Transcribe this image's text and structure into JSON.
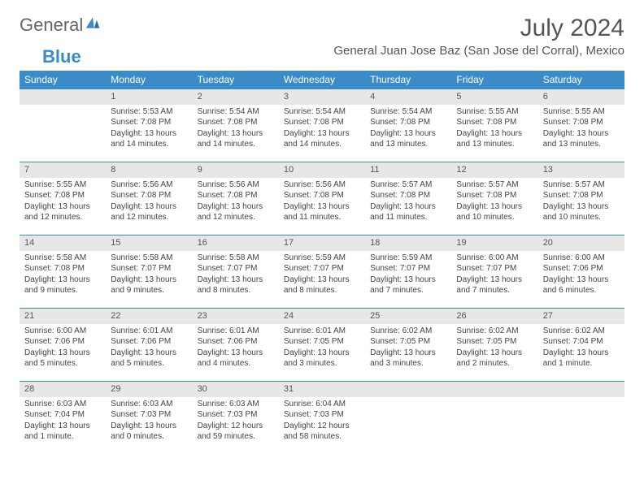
{
  "logo": {
    "part1": "General",
    "part2": "Blue"
  },
  "title": "July 2024",
  "location": "General Juan Jose Baz (San Jose del Corral), Mexico",
  "headers": [
    "Sunday",
    "Monday",
    "Tuesday",
    "Wednesday",
    "Thursday",
    "Friday",
    "Saturday"
  ],
  "colors": {
    "header_bg": "#3b8bc9",
    "header_fg": "#ffffff",
    "daybar_bg": "#e7e7e7",
    "text": "#444444"
  },
  "weeks": [
    [
      {
        "n": "",
        "lines": []
      },
      {
        "n": "1",
        "lines": [
          "Sunrise: 5:53 AM",
          "Sunset: 7:08 PM",
          "Daylight: 13 hours",
          "and 14 minutes."
        ]
      },
      {
        "n": "2",
        "lines": [
          "Sunrise: 5:54 AM",
          "Sunset: 7:08 PM",
          "Daylight: 13 hours",
          "and 14 minutes."
        ]
      },
      {
        "n": "3",
        "lines": [
          "Sunrise: 5:54 AM",
          "Sunset: 7:08 PM",
          "Daylight: 13 hours",
          "and 14 minutes."
        ]
      },
      {
        "n": "4",
        "lines": [
          "Sunrise: 5:54 AM",
          "Sunset: 7:08 PM",
          "Daylight: 13 hours",
          "and 13 minutes."
        ]
      },
      {
        "n": "5",
        "lines": [
          "Sunrise: 5:55 AM",
          "Sunset: 7:08 PM",
          "Daylight: 13 hours",
          "and 13 minutes."
        ]
      },
      {
        "n": "6",
        "lines": [
          "Sunrise: 5:55 AM",
          "Sunset: 7:08 PM",
          "Daylight: 13 hours",
          "and 13 minutes."
        ]
      }
    ],
    [
      {
        "n": "7",
        "lines": [
          "Sunrise: 5:55 AM",
          "Sunset: 7:08 PM",
          "Daylight: 13 hours",
          "and 12 minutes."
        ]
      },
      {
        "n": "8",
        "lines": [
          "Sunrise: 5:56 AM",
          "Sunset: 7:08 PM",
          "Daylight: 13 hours",
          "and 12 minutes."
        ]
      },
      {
        "n": "9",
        "lines": [
          "Sunrise: 5:56 AM",
          "Sunset: 7:08 PM",
          "Daylight: 13 hours",
          "and 12 minutes."
        ]
      },
      {
        "n": "10",
        "lines": [
          "Sunrise: 5:56 AM",
          "Sunset: 7:08 PM",
          "Daylight: 13 hours",
          "and 11 minutes."
        ]
      },
      {
        "n": "11",
        "lines": [
          "Sunrise: 5:57 AM",
          "Sunset: 7:08 PM",
          "Daylight: 13 hours",
          "and 11 minutes."
        ]
      },
      {
        "n": "12",
        "lines": [
          "Sunrise: 5:57 AM",
          "Sunset: 7:08 PM",
          "Daylight: 13 hours",
          "and 10 minutes."
        ]
      },
      {
        "n": "13",
        "lines": [
          "Sunrise: 5:57 AM",
          "Sunset: 7:08 PM",
          "Daylight: 13 hours",
          "and 10 minutes."
        ]
      }
    ],
    [
      {
        "n": "14",
        "lines": [
          "Sunrise: 5:58 AM",
          "Sunset: 7:08 PM",
          "Daylight: 13 hours",
          "and 9 minutes."
        ]
      },
      {
        "n": "15",
        "lines": [
          "Sunrise: 5:58 AM",
          "Sunset: 7:07 PM",
          "Daylight: 13 hours",
          "and 9 minutes."
        ]
      },
      {
        "n": "16",
        "lines": [
          "Sunrise: 5:58 AM",
          "Sunset: 7:07 PM",
          "Daylight: 13 hours",
          "and 8 minutes."
        ]
      },
      {
        "n": "17",
        "lines": [
          "Sunrise: 5:59 AM",
          "Sunset: 7:07 PM",
          "Daylight: 13 hours",
          "and 8 minutes."
        ]
      },
      {
        "n": "18",
        "lines": [
          "Sunrise: 5:59 AM",
          "Sunset: 7:07 PM",
          "Daylight: 13 hours",
          "and 7 minutes."
        ]
      },
      {
        "n": "19",
        "lines": [
          "Sunrise: 6:00 AM",
          "Sunset: 7:07 PM",
          "Daylight: 13 hours",
          "and 7 minutes."
        ]
      },
      {
        "n": "20",
        "lines": [
          "Sunrise: 6:00 AM",
          "Sunset: 7:06 PM",
          "Daylight: 13 hours",
          "and 6 minutes."
        ]
      }
    ],
    [
      {
        "n": "21",
        "lines": [
          "Sunrise: 6:00 AM",
          "Sunset: 7:06 PM",
          "Daylight: 13 hours",
          "and 5 minutes."
        ]
      },
      {
        "n": "22",
        "lines": [
          "Sunrise: 6:01 AM",
          "Sunset: 7:06 PM",
          "Daylight: 13 hours",
          "and 5 minutes."
        ]
      },
      {
        "n": "23",
        "lines": [
          "Sunrise: 6:01 AM",
          "Sunset: 7:06 PM",
          "Daylight: 13 hours",
          "and 4 minutes."
        ]
      },
      {
        "n": "24",
        "lines": [
          "Sunrise: 6:01 AM",
          "Sunset: 7:05 PM",
          "Daylight: 13 hours",
          "and 3 minutes."
        ]
      },
      {
        "n": "25",
        "lines": [
          "Sunrise: 6:02 AM",
          "Sunset: 7:05 PM",
          "Daylight: 13 hours",
          "and 3 minutes."
        ]
      },
      {
        "n": "26",
        "lines": [
          "Sunrise: 6:02 AM",
          "Sunset: 7:05 PM",
          "Daylight: 13 hours",
          "and 2 minutes."
        ]
      },
      {
        "n": "27",
        "lines": [
          "Sunrise: 6:02 AM",
          "Sunset: 7:04 PM",
          "Daylight: 13 hours",
          "and 1 minute."
        ]
      }
    ],
    [
      {
        "n": "28",
        "lines": [
          "Sunrise: 6:03 AM",
          "Sunset: 7:04 PM",
          "Daylight: 13 hours",
          "and 1 minute."
        ]
      },
      {
        "n": "29",
        "lines": [
          "Sunrise: 6:03 AM",
          "Sunset: 7:03 PM",
          "Daylight: 13 hours",
          "and 0 minutes."
        ]
      },
      {
        "n": "30",
        "lines": [
          "Sunrise: 6:03 AM",
          "Sunset: 7:03 PM",
          "Daylight: 12 hours",
          "and 59 minutes."
        ]
      },
      {
        "n": "31",
        "lines": [
          "Sunrise: 6:04 AM",
          "Sunset: 7:03 PM",
          "Daylight: 12 hours",
          "and 58 minutes."
        ]
      },
      {
        "n": "",
        "lines": []
      },
      {
        "n": "",
        "lines": []
      },
      {
        "n": "",
        "lines": []
      }
    ]
  ]
}
